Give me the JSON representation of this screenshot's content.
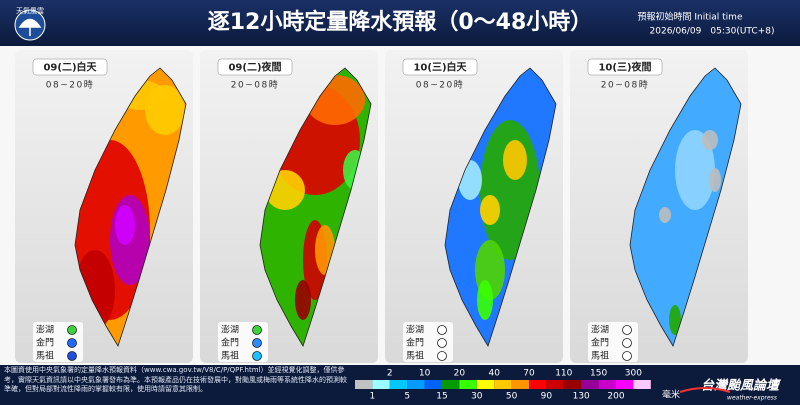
{
  "header": {
    "logo": "天氣風雲",
    "title": "逐12小時定量降水預報（0～48小時）",
    "init_label": "預報初始時間 Initial time",
    "init_time": "2026/06/09　05:30(UTC+8)"
  },
  "panels": [
    {
      "day": "09(二)白天",
      "hours": "08~20時",
      "islands": [
        {
          "name": "澎湖",
          "color": "#3bd43b"
        },
        {
          "name": "金門",
          "color": "#1f6bff"
        },
        {
          "name": "馬祖",
          "color": "#1f4fe0"
        }
      ]
    },
    {
      "day": "09(二)夜間",
      "hours": "20~08時",
      "islands": [
        {
          "name": "澎湖",
          "color": "#3bd43b"
        },
        {
          "name": "金門",
          "color": "#2a8cff"
        },
        {
          "name": "馬祖",
          "color": "#19c2ff"
        }
      ]
    },
    {
      "day": "10(三)白天",
      "hours": "08~20時",
      "islands": [
        {
          "name": "澎湖",
          "color": "#ffffff"
        },
        {
          "name": "金門",
          "color": "#ffffff"
        },
        {
          "name": "馬祖",
          "color": "#ffffff"
        }
      ]
    },
    {
      "day": "10(三)夜間",
      "hours": "20~08時",
      "islands": [
        {
          "name": "澎湖",
          "color": "#ffffff"
        },
        {
          "name": "金門",
          "color": "#ffffff"
        },
        {
          "name": "馬祖",
          "color": "#ffffff"
        }
      ]
    }
  ],
  "legend": {
    "ticks": [
      1,
      2,
      5,
      10,
      15,
      20,
      30,
      40,
      50,
      70,
      90,
      110,
      130,
      150,
      200,
      300
    ],
    "colors": [
      "#c1c1c1",
      "#9cfcff",
      "#03c8ff",
      "#059bff",
      "#0363ff",
      "#059902",
      "#39ff03",
      "#fffb03",
      "#ffc800",
      "#ff9500",
      "#ff0000",
      "#cc0000",
      "#990000",
      "#960099",
      "#c900cc",
      "#fb00ff",
      "#fdc9ff"
    ],
    "unit": "毫米"
  },
  "footer": {
    "note": "本圖資使用中央氣象署的定量降水預報資料（www.cwa.gov.tw/V8/C/P/QPF.html）並經視覺化調整，僅供參考，實際天氣資訊請以中央氣象署發布為準。本預報產品仍在技術發展中，對颱風或梅雨等系統性降水的預測較準確，但對局部對流性降雨的掌握較有限，使用時請留意其限制。",
    "brand": "台灣颱風論壇",
    "brand_sub": "weather-express"
  }
}
